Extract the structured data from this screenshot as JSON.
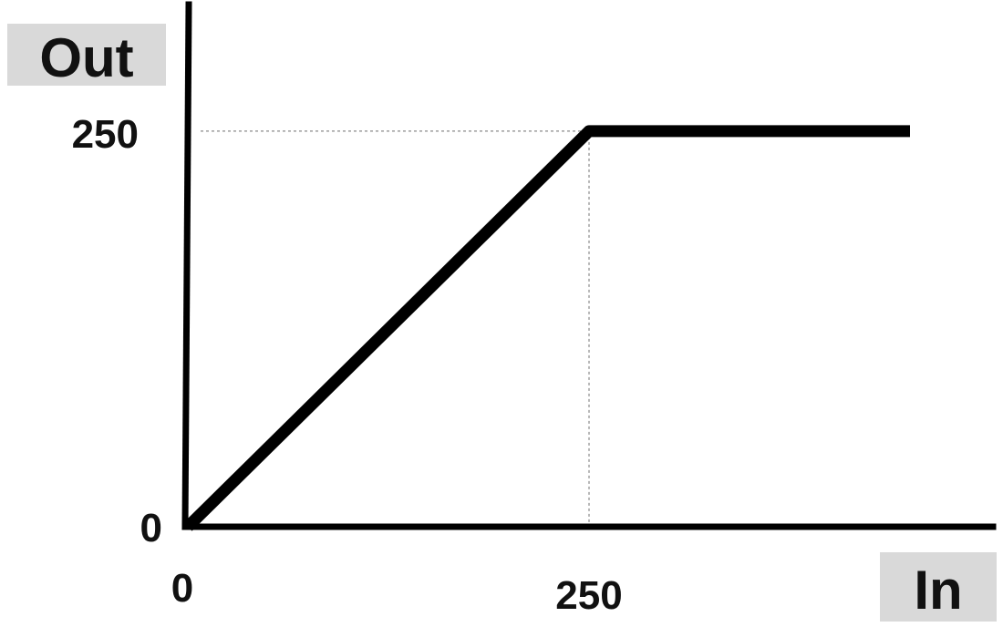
{
  "chart_data": {
    "type": "line",
    "xlabel": "In",
    "ylabel": "Out",
    "x_ticks": [
      "0",
      "250"
    ],
    "y_ticks": [
      "0",
      "250"
    ],
    "reference_lines": [
      {
        "axis": "y",
        "value": 250
      },
      {
        "axis": "x",
        "value": 250
      }
    ],
    "series": [
      {
        "x": [
          0,
          250,
          450
        ],
        "y": [
          0,
          250,
          250
        ]
      }
    ],
    "xlim": [
      0,
      500
    ],
    "ylim": [
      0,
      330
    ],
    "grid": false,
    "colors": {
      "line": "#000000",
      "label_box": "#d9d9d9",
      "ref_line": "#888888"
    }
  }
}
